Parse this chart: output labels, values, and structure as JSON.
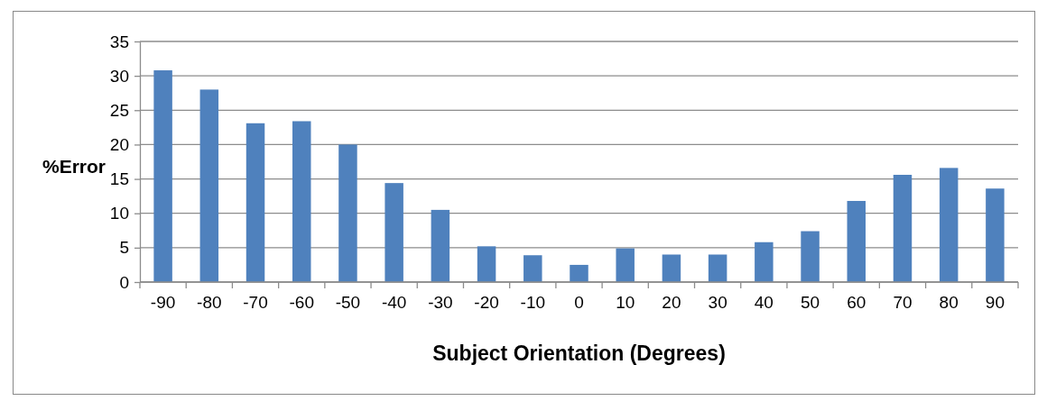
{
  "chart_data": {
    "type": "bar",
    "xlabel": "Subject Orientation (Degrees)",
    "ylabel": "%Error",
    "categories": [
      "-90",
      "-80",
      "-70",
      "-60",
      "-50",
      "-40",
      "-30",
      "-20",
      "-10",
      "0",
      "10",
      "20",
      "30",
      "40",
      "50",
      "60",
      "70",
      "80",
      "90"
    ],
    "values": [
      30.8,
      28.0,
      23.1,
      23.4,
      20.0,
      14.4,
      10.5,
      5.2,
      3.9,
      2.5,
      4.9,
      4.0,
      4.0,
      5.8,
      7.4,
      11.8,
      15.6,
      16.6,
      13.6
    ],
    "color": "#4f81bd",
    "ylim": [
      0,
      35
    ],
    "yticks": [
      0,
      5,
      10,
      15,
      20,
      25,
      30,
      35
    ],
    "grid": "y"
  }
}
